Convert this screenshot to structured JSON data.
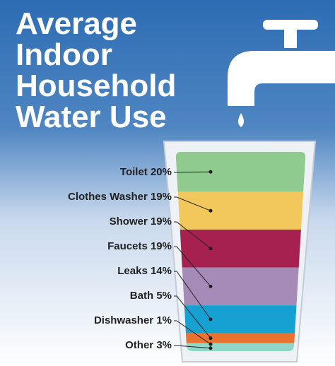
{
  "chart_data": {
    "type": "bar",
    "title": "Average Indoor Household Water Use",
    "categories": [
      "Toilet",
      "Clothes Washer",
      "Shower",
      "Faucets",
      "Leaks",
      "Bath",
      "Dishwasher",
      "Other"
    ],
    "values": [
      20,
      19,
      19,
      19,
      14,
      5,
      1,
      3
    ],
    "value_labels": [
      "20%",
      "19%",
      "19%",
      "19%",
      "14%",
      "5%",
      "1%",
      "3%"
    ],
    "colors": [
      "#8fca8e",
      "#f2c75c",
      "#a6214f",
      "#a68bb8",
      "#16a1d2",
      "#e9722e",
      "#94d6c6"
    ]
  }
}
